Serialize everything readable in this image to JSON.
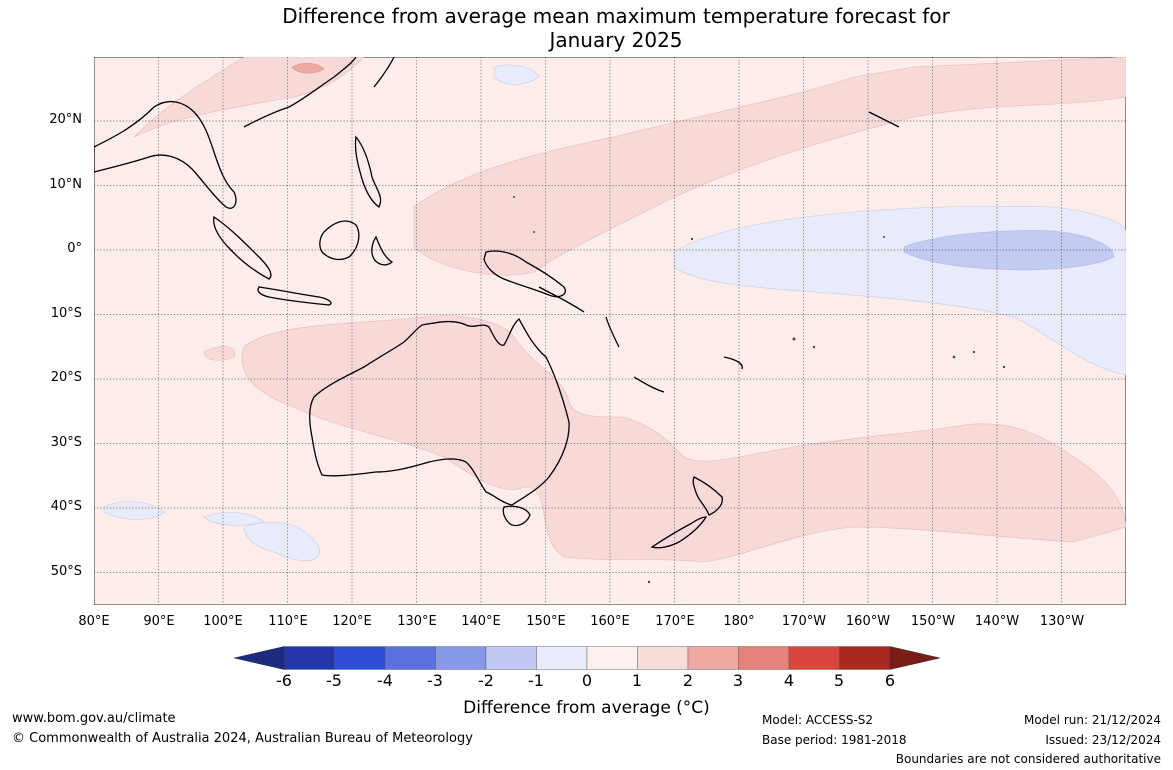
{
  "title_line1": "Difference from average mean maximum temperature forecast for",
  "title_line2": "January 2025",
  "lat_labels": [
    "20°N",
    "10°N",
    "0°",
    "10°S",
    "20°S",
    "30°S",
    "40°S",
    "50°S"
  ],
  "lon_labels": [
    "80°E",
    "90°E",
    "100°E",
    "110°E",
    "120°E",
    "130°E",
    "140°E",
    "150°E",
    "160°E",
    "170°E",
    "180°",
    "170°W",
    "160°W",
    "150°W",
    "140°W",
    "130°W"
  ],
  "colorbar": {
    "ticks": [
      "-6",
      "-5",
      "-4",
      "-3",
      "-2",
      "-1",
      "0",
      "1",
      "2",
      "3",
      "4",
      "5",
      "6"
    ],
    "colors": [
      "#2337a8",
      "#2e4ed6",
      "#5a72e0",
      "#8798e8",
      "#c1c9f2",
      "#e8ebfa",
      "#fdf0ee",
      "#f7dcda",
      "#eea9a3",
      "#e5827a",
      "#d9463b",
      "#a9281f"
    ],
    "low_extend_color": "#1b2c80",
    "high_extend_color": "#7a1d16",
    "label": "Difference from average (°C)"
  },
  "footer": {
    "url": "www.bom.gov.au/climate",
    "copyright": "© Commonwealth of Australia 2024, Australian Bureau of Meteorology",
    "model": "Model: ACCESS-S2",
    "base_period": "Base period: 1981-2018",
    "model_run": "Model run: 21/12/2024",
    "issued": "Issued: 23/12/2024",
    "disclaimer": "Boundaries are not considered authoritative"
  }
}
